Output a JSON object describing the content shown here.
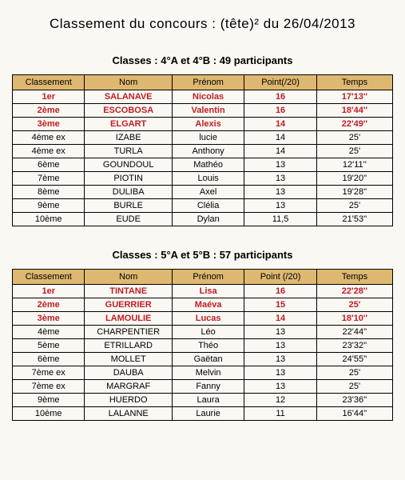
{
  "title": "Classement du concours  : (tête)²  du 26/04/2013",
  "tables": [
    {
      "subtitle": "Classes : 4°A et 4°B : 49 participants",
      "headers": [
        "Classement",
        "Nom",
        "Prénom",
        "Point(/20)",
        "Temps"
      ],
      "rows": [
        {
          "top": true,
          "cells": [
            "1er",
            "SALANAVE",
            "Nicolas",
            "16",
            "17'13''"
          ]
        },
        {
          "top": true,
          "cells": [
            "2ème",
            "ESCOBOSA",
            "Valentin",
            "16",
            "18'44''"
          ]
        },
        {
          "top": true,
          "cells": [
            "3ème",
            "ELGART",
            "Alexis",
            "14",
            "22'49''"
          ]
        },
        {
          "top": false,
          "cells": [
            "4ème ex",
            "IZABE",
            "lucie",
            "14",
            "25'"
          ]
        },
        {
          "top": false,
          "cells": [
            "4ème ex",
            "TURLA",
            "Anthony",
            "14",
            "25'"
          ]
        },
        {
          "top": false,
          "cells": [
            "6ème",
            "GOUNDOUL",
            "Mathéo",
            "13",
            "12'11''"
          ]
        },
        {
          "top": false,
          "cells": [
            "7ème",
            "PIOTIN",
            "Louis",
            "13",
            "19'20''"
          ]
        },
        {
          "top": false,
          "cells": [
            "8ème",
            "DULIBA",
            "Axel",
            "13",
            "19'28''"
          ]
        },
        {
          "top": false,
          "cells": [
            "9ème",
            "BURLE",
            "Clélia",
            "13",
            "25'"
          ]
        },
        {
          "top": false,
          "cells": [
            "10ème",
            "EUDE",
            "Dylan",
            "11,5",
            "21'53''"
          ]
        }
      ]
    },
    {
      "subtitle": "Classes : 5°A et 5°B : 57 participants",
      "headers": [
        "Classement",
        "Nom",
        "Prénom",
        "Point (/20)",
        "Temps"
      ],
      "rows": [
        {
          "top": true,
          "cells": [
            "1er",
            "TINTANE",
            "Lisa",
            "16",
            "22'28''"
          ]
        },
        {
          "top": true,
          "cells": [
            "2ème",
            "GUERRIER",
            "Maéva",
            "15",
            "25'"
          ]
        },
        {
          "top": true,
          "cells": [
            "3ème",
            "LAMOULIE",
            "Lucas",
            "14",
            "18'10''"
          ]
        },
        {
          "top": false,
          "cells": [
            "4ème",
            "CHARPENTIER",
            "Léo",
            "13",
            "22'44''"
          ]
        },
        {
          "top": false,
          "cells": [
            "5ème",
            "ETRILLARD",
            "Théo",
            "13",
            "23'32''"
          ]
        },
        {
          "top": false,
          "cells": [
            "6ème",
            "MOLLET",
            "Gaëtan",
            "13",
            "24'55''"
          ]
        },
        {
          "top": false,
          "cells": [
            "7ème ex",
            "DAUBA",
            "Melvin",
            "13",
            "25'"
          ]
        },
        {
          "top": false,
          "cells": [
            "7ème ex",
            "MARGRAF",
            "Fanny",
            "13",
            "25'"
          ]
        },
        {
          "top": false,
          "cells": [
            "9ème",
            "HUERDO",
            "Laura",
            "12",
            "23'36''"
          ]
        },
        {
          "top": false,
          "cells": [
            "10ème",
            "LALANNE",
            "Laurie",
            "11",
            "16'44''"
          ]
        }
      ]
    }
  ],
  "colors": {
    "header_bg": "#deb871",
    "top3_text": "#c01c28",
    "page_bg": "#faf8f2",
    "border": "#000000"
  }
}
